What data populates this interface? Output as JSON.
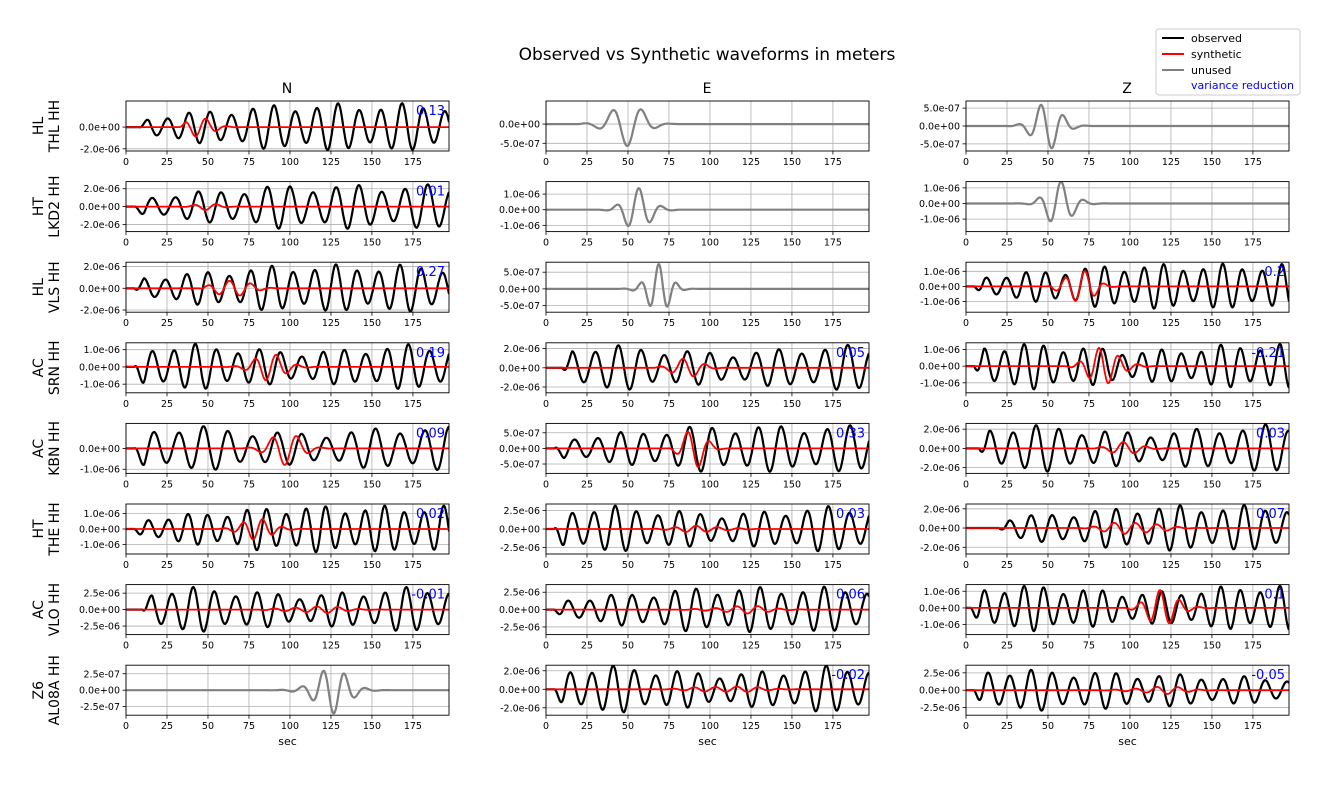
{
  "title": "Observed vs Synthetic waveforms in meters",
  "xlabel": "sec",
  "legend": {
    "position": "top-right",
    "entries": [
      {
        "label": "observed",
        "color": "#000000"
      },
      {
        "label": "synthetic",
        "color": "#ff0000"
      },
      {
        "label": "unused",
        "color": "#808080"
      },
      {
        "label": "variance reduction",
        "color": "#0000ff"
      }
    ]
  },
  "colors": {
    "observed": "#000000",
    "synthetic": "#ff0000",
    "unused": "#808080",
    "vr": "#0000ff"
  },
  "columns": [
    "N",
    "E",
    "Z"
  ],
  "x_ticks": [
    "0",
    "25",
    "50",
    "75",
    "100",
    "125",
    "150",
    "175"
  ],
  "stations": [
    {
      "network": "HL",
      "station": "THL HH"
    },
    {
      "network": "HT",
      "station": "LKD2 HH"
    },
    {
      "network": "HL",
      "station": "VLS HH"
    },
    {
      "network": "AC",
      "station": "SRN HH"
    },
    {
      "network": "AC",
      "station": "KBN HH"
    },
    {
      "network": "HT",
      "station": "THE HH"
    },
    {
      "network": "AC",
      "station": "VLO HH"
    },
    {
      "network": "Z6",
      "station": "AL08A HH"
    }
  ],
  "chart_data": {
    "type": "line",
    "title": "Observed vs Synthetic waveforms in meters",
    "xlabel": "sec",
    "xlim": [
      0,
      197
    ],
    "grid": true,
    "panels": [
      {
        "row": 0,
        "col": 0,
        "used": true,
        "vr": "0.13",
        "ylim": [
          -2.2e-06,
          2.4e-06
        ],
        "yticks": [
          {
            "v": 0,
            "label": "0.0e+00"
          },
          {
            "v": -2e-06,
            "label": "-2.0e-06"
          }
        ],
        "obs": {
          "amp": 2.2e-06,
          "period": 13,
          "phase": 0.3,
          "onset": 8,
          "shape": "grow"
        },
        "syn": {
          "amp": 9e-07,
          "period": 13,
          "phase": 0.5,
          "onset": 33,
          "shape": "packet",
          "center": 45,
          "width": 12
        }
      },
      {
        "row": 0,
        "col": 1,
        "used": false,
        "ylim": [
          -7e-07,
          6e-07
        ],
        "yticks": [
          {
            "v": 0,
            "label": "0.0e+00"
          },
          {
            "v": -5e-07,
            "label": "-5.0e-07"
          }
        ],
        "obs": {
          "amp": 6.5e-07,
          "period": 18,
          "phase": 0.0,
          "onset": 20,
          "shape": "packet",
          "center": 48,
          "width": 14
        }
      },
      {
        "row": 0,
        "col": 2,
        "used": false,
        "ylim": [
          -7e-07,
          7e-07
        ],
        "yticks": [
          {
            "v": 5e-07,
            "label": "5.0e-07"
          },
          {
            "v": 0,
            "label": "0.0e+00"
          },
          {
            "v": -5e-07,
            "label": "-5.0e-07"
          }
        ],
        "obs": {
          "amp": 6.8e-07,
          "period": 14,
          "phase": 0.0,
          "onset": 25,
          "shape": "packet",
          "center": 50,
          "width": 12
        }
      },
      {
        "row": 1,
        "col": 0,
        "used": true,
        "vr": "0.01",
        "ylim": [
          -2.8e-06,
          2.8e-06
        ],
        "yticks": [
          {
            "v": 2e-06,
            "label": "2.0e-06"
          },
          {
            "v": 0,
            "label": "0.0e+00"
          },
          {
            "v": -2e-06,
            "label": "-2.0e-06"
          }
        ],
        "obs": {
          "amp": 2.5e-06,
          "period": 14,
          "phase": 0.1,
          "onset": 5,
          "shape": "grow"
        },
        "syn": {
          "amp": 4e-07,
          "period": 14,
          "phase": 0.3,
          "onset": 30,
          "shape": "packet",
          "center": 50,
          "width": 10
        }
      },
      {
        "row": 1,
        "col": 1,
        "used": false,
        "ylim": [
          -1.4e-06,
          1.8e-06
        ],
        "yticks": [
          {
            "v": 1e-06,
            "label": "1.0e-06"
          },
          {
            "v": 0,
            "label": "0.0e+00"
          },
          {
            "v": -1e-06,
            "label": "-1.0e-06"
          }
        ],
        "obs": {
          "amp": 1.6e-06,
          "period": 14,
          "phase": 0.2,
          "onset": 20,
          "shape": "packet",
          "center": 57,
          "width": 11
        }
      },
      {
        "row": 1,
        "col": 2,
        "used": false,
        "ylim": [
          -1.8e-06,
          1.4e-06
        ],
        "yticks": [
          {
            "v": 1e-06,
            "label": "1.0e-06"
          },
          {
            "v": 0,
            "label": "0.0e+00"
          },
          {
            "v": -1e-06,
            "label": "-1.0e-06"
          }
        ],
        "obs": {
          "amp": 1.7e-06,
          "period": 14,
          "phase": 0.1,
          "onset": 25,
          "shape": "packet",
          "center": 58,
          "width": 11
        }
      },
      {
        "row": 2,
        "col": 0,
        "used": true,
        "vr": "0.27",
        "ylim": [
          -2.2e-06,
          2.4e-06
        ],
        "yticks": [
          {
            "v": 2e-06,
            "label": "2.0e-06"
          },
          {
            "v": 0,
            "label": "0.0e+00"
          },
          {
            "v": -2e-06,
            "label": "-2.0e-06"
          }
        ],
        "obs": {
          "amp": 2.2e-06,
          "period": 13,
          "phase": 0.4,
          "onset": 5,
          "shape": "grow"
        },
        "syn": {
          "amp": 1.1e-06,
          "period": 13,
          "phase": 0.4,
          "onset": 45,
          "shape": "packet",
          "center": 65,
          "width": 13
        }
      },
      {
        "row": 2,
        "col": 1,
        "used": false,
        "ylim": [
          -7e-07,
          8e-07
        ],
        "yticks": [
          {
            "v": 5e-07,
            "label": "5.0e-07"
          },
          {
            "v": 0,
            "label": "0.0e+00"
          },
          {
            "v": -5e-07,
            "label": "-5.0e-07"
          }
        ],
        "obs": {
          "amp": 7.8e-07,
          "period": 11,
          "phase": 0.0,
          "onset": 30,
          "shape": "packet",
          "center": 68,
          "width": 10
        }
      },
      {
        "row": 2,
        "col": 2,
        "used": true,
        "vr": "0.2",
        "ylim": [
          -1.7e-06,
          1.6e-06
        ],
        "yticks": [
          {
            "v": 1e-06,
            "label": "1.0e-06"
          },
          {
            "v": 0,
            "label": "0.0e+00"
          },
          {
            "v": -1e-06,
            "label": "-1.0e-06"
          }
        ],
        "obs": {
          "amp": 1.5e-06,
          "period": 12,
          "phase": 0.2,
          "onset": 5,
          "shape": "grow"
        },
        "syn": {
          "amp": 1.3e-06,
          "period": 12,
          "phase": 0.2,
          "onset": 50,
          "shape": "packet",
          "center": 68,
          "width": 12
        }
      },
      {
        "row": 3,
        "col": 0,
        "used": true,
        "vr": "0.19",
        "ylim": [
          -1.5e-06,
          1.4e-06
        ],
        "yticks": [
          {
            "v": 1e-06,
            "label": "1.0e-06"
          },
          {
            "v": 0,
            "label": "0.0e+00"
          },
          {
            "v": -1e-06,
            "label": "-1.0e-06"
          }
        ],
        "obs": {
          "amp": 1.35e-06,
          "period": 13,
          "phase": 0.0,
          "onset": 5,
          "shape": "steady"
        },
        "syn": {
          "amp": 8e-07,
          "period": 13,
          "phase": 0.2,
          "onset": 60,
          "shape": "packet",
          "center": 88,
          "width": 14
        }
      },
      {
        "row": 3,
        "col": 1,
        "used": true,
        "vr": "0.05",
        "ylim": [
          -2.6e-06,
          2.6e-06
        ],
        "yticks": [
          {
            "v": 2e-06,
            "label": "2.0e-06"
          },
          {
            "v": 0,
            "label": "0.0e+00"
          },
          {
            "v": -2e-06,
            "label": "-2.0e-06"
          }
        ],
        "obs": {
          "amp": 2.4e-06,
          "period": 14,
          "phase": 0.1,
          "onset": 10,
          "shape": "steady"
        },
        "syn": {
          "amp": 1.1e-06,
          "period": 14,
          "phase": 0.3,
          "onset": 65,
          "shape": "packet",
          "center": 85,
          "width": 12
        }
      },
      {
        "row": 3,
        "col": 2,
        "used": true,
        "vr": "-0.21",
        "ylim": [
          -1.6e-06,
          1.4e-06
        ],
        "yticks": [
          {
            "v": 1e-06,
            "label": "1.0e-06"
          },
          {
            "v": 0,
            "label": "0.0e+00"
          },
          {
            "v": -1e-06,
            "label": "-1.0e-06"
          }
        ],
        "obs": {
          "amp": 1.4e-06,
          "period": 12,
          "phase": 0.3,
          "onset": 5,
          "shape": "steady"
        },
        "syn": {
          "amp": 1.2e-06,
          "period": 12,
          "phase": 0.5,
          "onset": 60,
          "shape": "packet",
          "center": 85,
          "width": 14
        }
      },
      {
        "row": 4,
        "col": 0,
        "used": true,
        "vr": "0.09",
        "ylim": [
          -1.2e-06,
          1.2e-06
        ],
        "yticks": [
          {
            "v": 0,
            "label": "0.0e+00"
          },
          {
            "v": -1e-06,
            "label": "-1.0e-06"
          }
        ],
        "obs": {
          "amp": 1.1e-06,
          "period": 15,
          "phase": 0.1,
          "onset": 5,
          "shape": "steady"
        },
        "syn": {
          "amp": 8e-07,
          "period": 15,
          "phase": 0.3,
          "onset": 70,
          "shape": "packet",
          "center": 97,
          "width": 14
        }
      },
      {
        "row": 4,
        "col": 1,
        "used": true,
        "vr": "0.33",
        "ylim": [
          -8e-07,
          8e-07
        ],
        "yticks": [
          {
            "v": 5e-07,
            "label": "5.0e-07"
          },
          {
            "v": 0,
            "label": "0.0e+00"
          },
          {
            "v": -5e-07,
            "label": "-5.0e-07"
          }
        ],
        "obs": {
          "amp": 7.5e-07,
          "period": 14,
          "phase": 0.0,
          "onset": 5,
          "shape": "grow"
        },
        "syn": {
          "amp": 6.5e-07,
          "period": 14,
          "phase": 0.1,
          "onset": 75,
          "shape": "packet",
          "center": 90,
          "width": 10
        }
      },
      {
        "row": 4,
        "col": 2,
        "used": true,
        "vr": "0.03",
        "ylim": [
          -2.6e-06,
          2.6e-06
        ],
        "yticks": [
          {
            "v": 2e-06,
            "label": "2.0e-06"
          },
          {
            "v": 0,
            "label": "0.0e+00"
          },
          {
            "v": -2e-06,
            "label": "-2.0e-06"
          }
        ],
        "obs": {
          "amp": 2.5e-06,
          "period": 14,
          "phase": 0.2,
          "onset": 8,
          "shape": "steady"
        },
        "syn": {
          "amp": 7e-07,
          "period": 14,
          "phase": 0.4,
          "onset": 75,
          "shape": "packet",
          "center": 98,
          "width": 13
        }
      },
      {
        "row": 5,
        "col": 0,
        "used": true,
        "vr": "0.02",
        "ylim": [
          -1.6e-06,
          1.6e-06
        ],
        "yticks": [
          {
            "v": 1e-06,
            "label": "1.0e-06"
          },
          {
            "v": 0,
            "label": "0.0e+00"
          },
          {
            "v": -1e-06,
            "label": "-1.0e-06"
          }
        ],
        "obs": {
          "amp": 1.5e-06,
          "period": 12,
          "phase": 0.1,
          "onset": 5,
          "shape": "grow"
        },
        "syn": {
          "amp": 7e-07,
          "period": 12,
          "phase": 0.3,
          "onset": 55,
          "shape": "packet",
          "center": 80,
          "width": 14
        }
      },
      {
        "row": 5,
        "col": 1,
        "used": true,
        "vr": "0.03",
        "ylim": [
          -3.4e-06,
          3.4e-06
        ],
        "yticks": [
          {
            "v": 2.5e-06,
            "label": "2.5e-06"
          },
          {
            "v": 0,
            "label": "0.0e+00"
          },
          {
            "v": -2.5e-06,
            "label": "-2.5e-06"
          }
        ],
        "obs": {
          "amp": 3.2e-06,
          "period": 13,
          "phase": 0.0,
          "onset": 5,
          "shape": "steady"
        },
        "syn": {
          "amp": 5e-07,
          "period": 13,
          "phase": 0.2,
          "onset": 60,
          "shape": "packet",
          "center": 95,
          "width": 20
        }
      },
      {
        "row": 5,
        "col": 2,
        "used": true,
        "vr": "0.07",
        "ylim": [
          -2.7e-06,
          2.5e-06
        ],
        "yticks": [
          {
            "v": 2e-06,
            "label": "2.0e-06"
          },
          {
            "v": 0,
            "label": "0.0e+00"
          },
          {
            "v": -2e-06,
            "label": "-2.0e-06"
          }
        ],
        "obs": {
          "amp": 2.4e-06,
          "period": 13,
          "phase": 0.2,
          "onset": 20,
          "shape": "grow"
        },
        "syn": {
          "amp": 8e-07,
          "period": 13,
          "phase": 0.3,
          "onset": 70,
          "shape": "packet",
          "center": 102,
          "width": 20
        }
      },
      {
        "row": 6,
        "col": 0,
        "used": true,
        "vr": "-0.01",
        "ylim": [
          -3.8e-06,
          3.8e-06
        ],
        "yticks": [
          {
            "v": 2.5e-06,
            "label": "2.5e-06"
          },
          {
            "v": 0,
            "label": "0.0e+00"
          },
          {
            "v": -2.5e-06,
            "label": "-2.5e-06"
          }
        ],
        "obs": {
          "amp": 3.5e-06,
          "period": 13,
          "phase": 0.1,
          "onset": 10,
          "shape": "steady"
        },
        "syn": {
          "amp": 6e-07,
          "period": 13,
          "phase": 0.3,
          "onset": 80,
          "shape": "packet",
          "center": 115,
          "width": 22
        }
      },
      {
        "row": 6,
        "col": 1,
        "used": true,
        "vr": "0.06",
        "ylim": [
          -3.6e-06,
          3.6e-06
        ],
        "yticks": [
          {
            "v": 2.5e-06,
            "label": "2.5e-06"
          },
          {
            "v": 0,
            "label": "0.0e+00"
          },
          {
            "v": -2.5e-06,
            "label": "-2.5e-06"
          }
        ],
        "obs": {
          "amp": 3.3e-06,
          "period": 13,
          "phase": 0.2,
          "onset": 5,
          "shape": "grow"
        },
        "syn": {
          "amp": 6e-07,
          "period": 13,
          "phase": 0.3,
          "onset": 80,
          "shape": "packet",
          "center": 120,
          "width": 22
        }
      },
      {
        "row": 6,
        "col": 2,
        "used": true,
        "vr": "0.1",
        "ylim": [
          -1.6e-06,
          1.4e-06
        ],
        "yticks": [
          {
            "v": 1e-06,
            "label": "1.0e-06"
          },
          {
            "v": 0,
            "label": "0.0e+00"
          },
          {
            "v": -1e-06,
            "label": "-1.0e-06"
          }
        ],
        "obs": {
          "amp": 1.4e-06,
          "period": 12,
          "phase": 0.3,
          "onset": 3,
          "shape": "steady"
        },
        "syn": {
          "amp": 1.1e-06,
          "period": 12,
          "phase": 0.4,
          "onset": 95,
          "shape": "packet",
          "center": 120,
          "width": 14
        }
      },
      {
        "row": 7,
        "col": 0,
        "used": false,
        "ylim": [
          -3.8e-07,
          3.8e-07
        ],
        "yticks": [
          {
            "v": 2.5e-07,
            "label": "2.5e-07"
          },
          {
            "v": 0,
            "label": "0.0e+00"
          },
          {
            "v": -2.5e-07,
            "label": "-2.5e-07"
          }
        ],
        "obs": {
          "amp": 3.6e-07,
          "period": 13,
          "phase": 0.0,
          "onset": 60,
          "shape": "packet",
          "center": 125,
          "width": 15
        }
      },
      {
        "row": 7,
        "col": 1,
        "used": true,
        "vr": "-0.02",
        "ylim": [
          -2.8e-06,
          2.6e-06
        ],
        "yticks": [
          {
            "v": 2e-06,
            "label": "2.0e-06"
          },
          {
            "v": 0,
            "label": "0.0e+00"
          },
          {
            "v": -2e-06,
            "label": "-2.0e-06"
          }
        ],
        "obs": {
          "amp": 2.6e-06,
          "period": 13,
          "phase": 0.1,
          "onset": 5,
          "shape": "steady"
        },
        "syn": {
          "amp": 4e-07,
          "period": 13,
          "phase": 0.3,
          "onset": 60,
          "shape": "packet",
          "center": 110,
          "width": 25
        }
      },
      {
        "row": 7,
        "col": 2,
        "used": true,
        "vr": "-0.05",
        "ylim": [
          -3.6e-06,
          3.6e-06
        ],
        "yticks": [
          {
            "v": 2.5e-06,
            "label": "2.5e-06"
          },
          {
            "v": 0,
            "label": "0.0e+00"
          },
          {
            "v": -2.5e-06,
            "label": "-2.5e-06"
          }
        ],
        "obs": {
          "amp": 3.3e-06,
          "period": 13,
          "phase": 0.2,
          "onset": 5,
          "shape": "decay"
        },
        "syn": {
          "amp": 6e-07,
          "period": 13,
          "phase": 0.3,
          "onset": 80,
          "shape": "packet",
          "center": 118,
          "width": 20
        }
      }
    ]
  }
}
